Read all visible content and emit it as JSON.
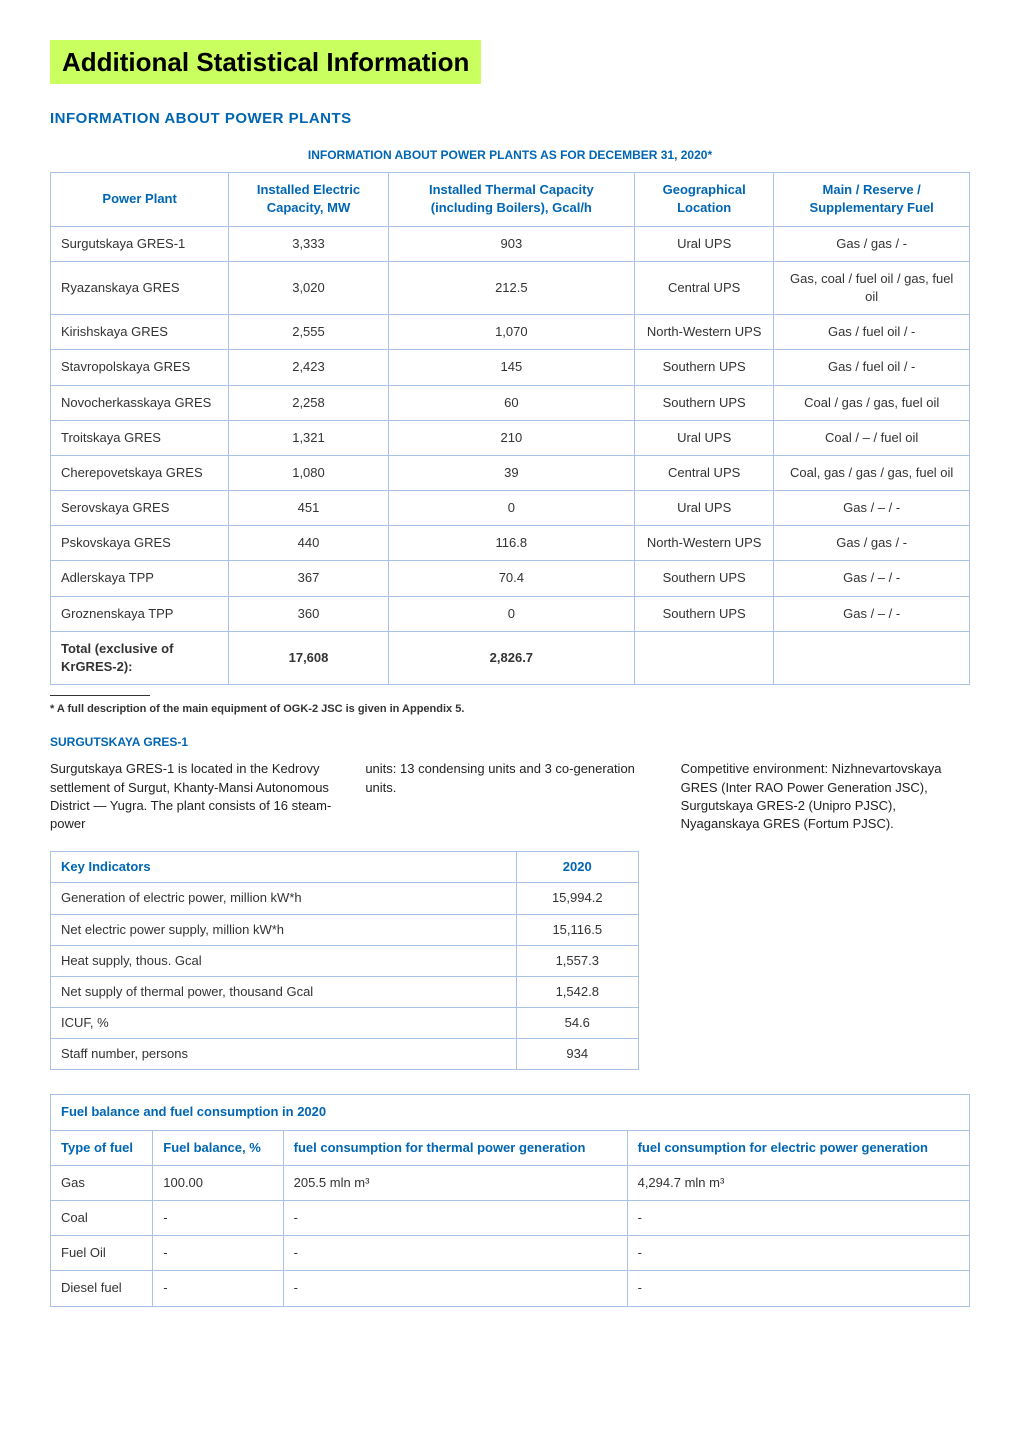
{
  "title": "Additional Statistical Information",
  "section": "INFORMATION ABOUT POWER PLANTS",
  "table1": {
    "caption": "INFORMATION ABOUT POWER PLANTS AS FOR DECEMBER 31, 2020*",
    "headers": [
      "Power Plant",
      "Installed Electric Capacity, MW",
      "Installed Thermal Capacity (including Boilers), Gcal/h",
      "Geographical Location",
      "Main / Reserve / Supplementary Fuel"
    ],
    "rows": [
      [
        "Surgutskaya GRES-1",
        "3,333",
        "903",
        "Ural UPS",
        "Gas / gas / -"
      ],
      [
        "Ryazanskaya GRES",
        "3,020",
        "212.5",
        "Central UPS",
        "Gas, coal / fuel oil / gas, fuel oil"
      ],
      [
        "Kirishskaya GRES",
        "2,555",
        "1,070",
        "North-Western UPS",
        "Gas / fuel oil / -"
      ],
      [
        "Stavropolskaya GRES",
        "2,423",
        "145",
        "Southern UPS",
        "Gas / fuel oil / -"
      ],
      [
        "Novocherkasskaya GRES",
        "2,258",
        "60",
        "Southern UPS",
        "Coal / gas / gas, fuel oil"
      ],
      [
        "Troitskaya GRES",
        "1,321",
        "210",
        "Ural UPS",
        "Coal / – / fuel oil"
      ],
      [
        "Cherepovetskaya GRES",
        "1,080",
        "39",
        "Central UPS",
        "Coal, gas / gas / gas, fuel oil"
      ],
      [
        "Serovskaya GRES",
        "451",
        "0",
        "Ural UPS",
        "Gas / – / -"
      ],
      [
        "Pskovskaya GRES",
        "440",
        "116.8",
        "North-Western UPS",
        "Gas / gas / -"
      ],
      [
        "Adlerskaya TPP",
        "367",
        "70.4",
        "Southern UPS",
        "Gas / – / -"
      ],
      [
        "Groznenskaya TPP",
        "360",
        "0",
        "Southern UPS",
        "Gas / – / -"
      ]
    ],
    "total": [
      "Total (exclusive of KrGRES-2):",
      "17,608",
      "2,826.7",
      "",
      ""
    ]
  },
  "footnote": "* A full description of the main equipment of OGK-2 JSC is given in Appendix 5.",
  "plant": {
    "name": "SURGUTSKAYA GRES-1",
    "col1": "Surgutskaya GRES-1 is located in the Kedrovy settlement of Surgut, Khanty-Mansi Autonomous District — Yugra. The plant consists of 16 steam-power",
    "col2": "units: 13 condensing units and 3 co-generation units.",
    "col3": "Competitive environment: Nizhnevartovskaya GRES (Inter RAO Power Generation JSC), Surgutskaya GRES-2 (Unipro PJSC), Nyaganskaya GRES (Fortum PJSC)."
  },
  "key_table": {
    "headers": [
      "Key Indicators",
      "2020"
    ],
    "rows": [
      [
        "Generation of electric power, million kW*h",
        "15,994.2"
      ],
      [
        "Net electric power supply, million kW*h",
        "15,116.5"
      ],
      [
        "Heat supply, thous. Gcal",
        "1,557.3"
      ],
      [
        "Net supply of thermal power, thousand Gcal",
        "1,542.8"
      ],
      [
        "ICUF, %",
        "54.6"
      ],
      [
        "Staff number, persons",
        "934"
      ]
    ]
  },
  "fuel_table": {
    "caption": "Fuel balance and fuel consumption in 2020",
    "headers": [
      "Type of fuel",
      "Fuel balance, %",
      "fuel consumption for thermal power generation",
      "fuel consumption for electric power generation"
    ],
    "rows": [
      [
        "Gas",
        "100.00",
        "205.5 mln m³",
        "4,294.7 mln m³"
      ],
      [
        "Coal",
        "-",
        "-",
        "-"
      ],
      [
        "Fuel Oil",
        "-",
        "-",
        "-"
      ],
      [
        "Diesel fuel",
        "-",
        "-",
        "-"
      ]
    ]
  },
  "colors": {
    "highlight": "#c9ff5e",
    "blue": "#0066b3",
    "border": "#a9c3e6"
  }
}
